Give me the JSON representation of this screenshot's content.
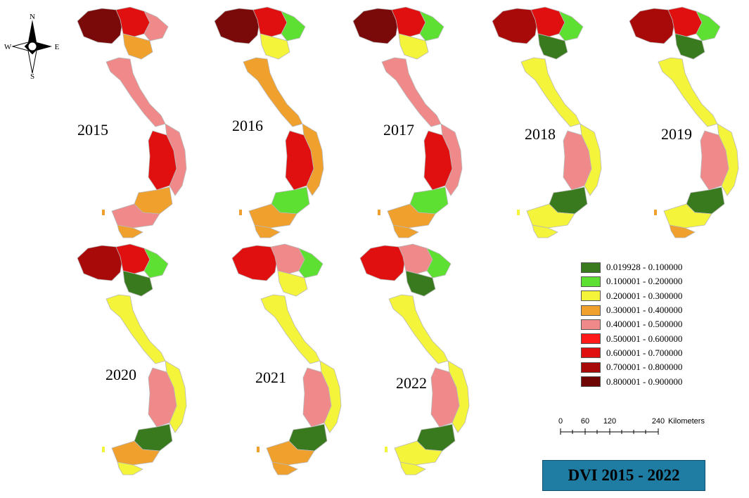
{
  "compass": {
    "n": "N",
    "s": "S",
    "e": "E",
    "w": "W"
  },
  "title": "DVI 2015 - 2022",
  "legend": [
    {
      "label": "0.019928 - 0.100000",
      "color": "#3a7a1e"
    },
    {
      "label": "0.100001 - 0.200000",
      "color": "#5ee033"
    },
    {
      "label": "0.200001 - 0.300000",
      "color": "#f4f43a"
    },
    {
      "label": "0.300001 - 0.400000",
      "color": "#f0a02c"
    },
    {
      "label": "0.400001 - 0.500000",
      "color": "#f08a8a"
    },
    {
      "label": "0.500001 - 0.600000",
      "color": "#ff1a1a"
    },
    {
      "label": "0.600001 - 0.700000",
      "color": "#e01010"
    },
    {
      "label": "0.700001 - 0.800000",
      "color": "#a80a0a"
    },
    {
      "label": "0.800001 - 0.900000",
      "color": "#6e0606"
    }
  ],
  "scale": {
    "ticks": [
      "0",
      "60",
      "120",
      "240"
    ],
    "unit": "Kilometers"
  },
  "maps": [
    {
      "year": "2015",
      "north_west": "#7a0a0a",
      "north_center": "#e01010",
      "north_east": "#f08a8a",
      "delta_north": "#f0a02c",
      "north_central": "#f08a8a",
      "central_coast": "#f08a8a",
      "highlands": "#e01010",
      "south_east": "#f0a02c",
      "mekong_delta": "#f08a8a",
      "south_tip": "#f0a02c"
    },
    {
      "year": "2016",
      "north_west": "#7a0a0a",
      "north_center": "#e01010",
      "north_east": "#5ee033",
      "delta_north": "#f4f43a",
      "north_central": "#f0a02c",
      "central_coast": "#f0a02c",
      "highlands": "#e01010",
      "south_east": "#5ee033",
      "mekong_delta": "#f0a02c",
      "south_tip": "#f0a02c"
    },
    {
      "year": "2017",
      "north_west": "#7a0a0a",
      "north_center": "#e01010",
      "north_east": "#5ee033",
      "delta_north": "#f4f43a",
      "north_central": "#f08a8a",
      "central_coast": "#f08a8a",
      "highlands": "#e01010",
      "south_east": "#5ee033",
      "mekong_delta": "#f0a02c",
      "south_tip": "#f0a02c"
    },
    {
      "year": "2018",
      "north_west": "#a80a0a",
      "north_center": "#e01010",
      "north_east": "#5ee033",
      "delta_north": "#3a7a1e",
      "north_central": "#f4f43a",
      "central_coast": "#f4f43a",
      "highlands": "#f08a8a",
      "south_east": "#3a7a1e",
      "mekong_delta": "#f4f43a",
      "south_tip": "#f4f43a"
    },
    {
      "year": "2019",
      "north_west": "#a80a0a",
      "north_center": "#e01010",
      "north_east": "#5ee033",
      "delta_north": "#3a7a1e",
      "north_central": "#f4f43a",
      "central_coast": "#f4f43a",
      "highlands": "#f08a8a",
      "south_east": "#3a7a1e",
      "mekong_delta": "#f4f43a",
      "south_tip": "#f0a02c"
    },
    {
      "year": "2020",
      "north_west": "#a80a0a",
      "north_center": "#e01010",
      "north_east": "#5ee033",
      "delta_north": "#3a7a1e",
      "north_central": "#f4f43a",
      "central_coast": "#f4f43a",
      "highlands": "#f08a8a",
      "south_east": "#3a7a1e",
      "mekong_delta": "#f0a02c",
      "south_tip": "#f4f43a"
    },
    {
      "year": "2021",
      "north_west": "#e01010",
      "north_center": "#f08a8a",
      "north_east": "#5ee033",
      "delta_north": "#f4f43a",
      "north_central": "#f4f43a",
      "central_coast": "#f4f43a",
      "highlands": "#f08a8a",
      "south_east": "#3a7a1e",
      "mekong_delta": "#f0a02c",
      "south_tip": "#f0a02c"
    },
    {
      "year": "2022",
      "north_west": "#e01010",
      "north_center": "#f08a8a",
      "north_east": "#5ee033",
      "delta_north": "#3a7a1e",
      "north_central": "#f4f43a",
      "central_coast": "#f4f43a",
      "highlands": "#f08a8a",
      "south_east": "#3a7a1e",
      "mekong_delta": "#f4f43a",
      "south_tip": "#f4f43a"
    }
  ]
}
